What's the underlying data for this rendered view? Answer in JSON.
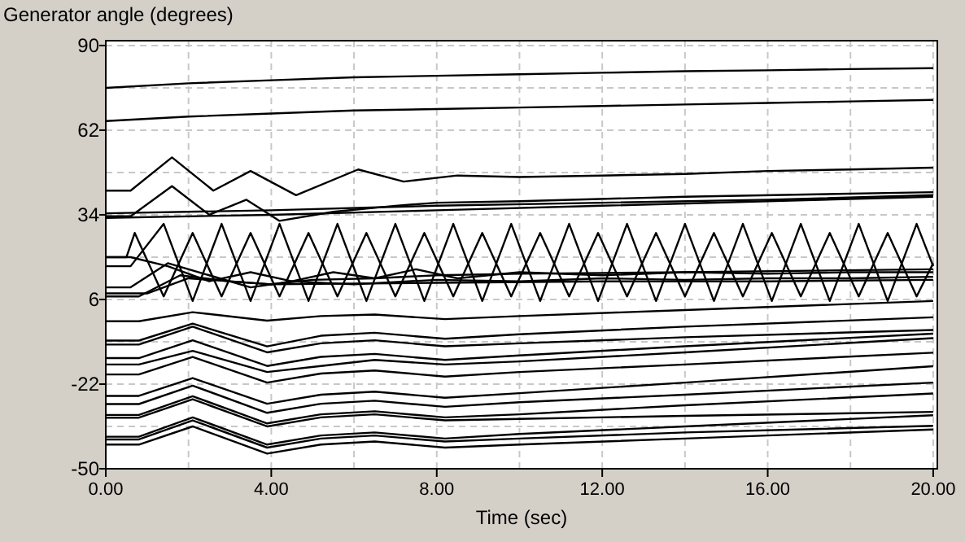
{
  "chart_data": {
    "type": "line",
    "ylabel": "Generator angle (degrees)",
    "xlabel": "Time (sec)",
    "xlim": [
      0,
      20.1
    ],
    "ylim": [
      -50,
      91.6
    ],
    "xticks": [
      {
        "value": 0,
        "label": "0.00"
      },
      {
        "value": 2,
        "label": null
      },
      {
        "value": 4,
        "label": "4.00"
      },
      {
        "value": 6,
        "label": null
      },
      {
        "value": 8,
        "label": "8.00"
      },
      {
        "value": 10,
        "label": null
      },
      {
        "value": 12,
        "label": "12.00"
      },
      {
        "value": 14,
        "label": null
      },
      {
        "value": 16,
        "label": "16.00"
      },
      {
        "value": 18,
        "label": null
      },
      {
        "value": 20,
        "label": "20.00"
      }
    ],
    "yticks": [
      90,
      {
        "value": 76,
        "label": null
      },
      62,
      {
        "value": 48,
        "label": null
      },
      34,
      {
        "value": 20,
        "label": null
      },
      6,
      {
        "value": -8,
        "label": null
      },
      -22,
      {
        "value": -36,
        "label": null
      },
      -50
    ],
    "grid": true,
    "marker": "none",
    "line_style": "solid",
    "series": [
      {
        "color": "#000000",
        "x": [
          0,
          2,
          4,
          6,
          8,
          10,
          12,
          14,
          16,
          18,
          20
        ],
        "values": [
          76,
          77.5,
          78.5,
          79.5,
          80,
          80.5,
          81,
          81.5,
          81.8,
          82.2,
          82.5
        ]
      },
      {
        "color": "#000000",
        "x": [
          0,
          2,
          4,
          6,
          8,
          10,
          12,
          14,
          16,
          18,
          20
        ],
        "values": [
          65,
          66.5,
          67.5,
          68.5,
          69,
          69.5,
          70,
          70.5,
          71,
          71.5,
          72
        ]
      },
      {
        "color": "#000000",
        "x": [
          0,
          0.6,
          1.6,
          2.6,
          3.5,
          4.6,
          6.1,
          7.2,
          8.5,
          10,
          12,
          14,
          16,
          18,
          20
        ],
        "values": [
          42,
          42,
          53,
          42,
          48.5,
          40.5,
          49,
          45,
          47,
          46.5,
          47,
          47.5,
          48.5,
          49,
          49.6
        ]
      },
      {
        "color": "#000000",
        "x": [
          0,
          0.6,
          1.6,
          2.5,
          3.4,
          4.2,
          5.5,
          7,
          8,
          10,
          14,
          20
        ],
        "values": [
          33.5,
          33.5,
          43.5,
          34,
          39,
          32,
          35,
          37,
          38,
          38.5,
          40,
          41.5
        ]
      },
      {
        "color": "#000000",
        "x": [
          0,
          4,
          8,
          12,
          16,
          20
        ],
        "values": [
          34.5,
          35.5,
          37,
          38,
          39,
          40.5
        ]
      },
      {
        "color": "#000000",
        "x": [
          0,
          4,
          8,
          12,
          16,
          20
        ],
        "values": [
          33,
          34,
          35.5,
          37,
          38.5,
          40
        ]
      },
      {
        "color": "#000000",
        "x": [
          0,
          0.6,
          1.4,
          2.1,
          2.8,
          3.5,
          4.2,
          4.9,
          5.6,
          6.3,
          7,
          7.7,
          8.4,
          9.1,
          9.8,
          10.5,
          11.2,
          11.9,
          12.6,
          13.3,
          14,
          14.7,
          15.4,
          16.1,
          16.8,
          17.5,
          18.2,
          18.9,
          19.6,
          20
        ],
        "values": [
          17,
          17,
          31,
          5.5,
          31,
          5.5,
          31,
          5.5,
          31,
          5.5,
          31,
          5.5,
          31,
          5.5,
          31,
          5.5,
          31,
          5.5,
          31,
          5.5,
          31,
          5.5,
          31,
          5.5,
          31,
          5.5,
          31,
          5.5,
          31,
          17
        ]
      },
      {
        "color": "#000000",
        "x": [
          0,
          0.5,
          0.7,
          1.4,
          2.1,
          2.8,
          3.5,
          4.2,
          4.9,
          5.6,
          6.3,
          7,
          7.7,
          8.4,
          9.1,
          9.8,
          10.5,
          11.2,
          11.9,
          12.6,
          13.3,
          14,
          14.7,
          15.4,
          16.1,
          16.8,
          17.5,
          18.2,
          18.9,
          19.6,
          20
        ],
        "values": [
          20,
          20,
          28,
          7,
          28,
          7,
          28,
          7,
          28,
          7,
          28,
          7,
          28,
          7,
          28,
          7,
          28,
          7,
          28,
          7,
          28,
          7,
          28,
          7,
          28,
          7,
          28,
          7,
          28,
          7,
          18
        ]
      },
      {
        "color": "#000000",
        "x": [
          0,
          0.6,
          1.5,
          2.5,
          3.5,
          4.5,
          5.5,
          6.5,
          7.5,
          8.5,
          10,
          12,
          14,
          16,
          18,
          20
        ],
        "values": [
          20,
          20,
          17,
          12,
          15,
          12,
          15,
          13,
          16,
          13,
          15,
          14,
          15,
          14.5,
          15,
          15
        ]
      },
      {
        "color": "#000000",
        "x": [
          0,
          0.6,
          1.5,
          2.5,
          3.5,
          4.5,
          6,
          8,
          10,
          12,
          14,
          16,
          18,
          20
        ],
        "values": [
          10,
          10,
          18,
          14,
          10,
          12,
          11,
          12.5,
          12,
          13,
          12.5,
          13,
          13,
          13.5
        ]
      },
      {
        "color": "#000000",
        "x": [
          0,
          1,
          2,
          4,
          8,
          12,
          16,
          20
        ],
        "values": [
          8,
          8,
          13,
          11,
          11.5,
          12,
          12,
          12.5
        ]
      },
      {
        "color": "#000000",
        "x": [
          0,
          0.8,
          1.8,
          3,
          4,
          5,
          6.5,
          8,
          10,
          14,
          20
        ],
        "values": [
          7,
          7,
          14,
          12,
          11,
          12.5,
          13,
          14,
          14.5,
          15,
          16
        ]
      },
      {
        "color": "#000000",
        "x": [
          0,
          0.8,
          2.1,
          3.9,
          5.2,
          6.5,
          8.2,
          10,
          14,
          20
        ],
        "values": [
          -1.2,
          -1.2,
          1.8,
          -1,
          0.5,
          1,
          -0.5,
          0.5,
          2.5,
          5.5
        ]
      },
      {
        "color": "#000000",
        "x": [
          0,
          0.8,
          2.1,
          3.9,
          5.2,
          6.5,
          8.2,
          10,
          14,
          20
        ],
        "values": [
          -7.6,
          -7.6,
          -2,
          -9.5,
          -6,
          -5,
          -7,
          -5.5,
          -3,
          0.1
        ]
      },
      {
        "color": "#000000",
        "x": [
          0,
          0.8,
          2.1,
          3.9,
          5.2,
          6.5,
          8.2,
          10,
          14,
          20
        ],
        "values": [
          -8.9,
          -8.9,
          -3,
          -11.5,
          -8.5,
          -7.5,
          -9.5,
          -8.5,
          -6.5,
          -4.1
        ]
      },
      {
        "color": "#000000",
        "x": [
          0,
          0.8,
          2.1,
          3.9,
          5.2,
          6.5,
          8.2,
          10,
          14,
          20
        ],
        "values": [
          -13.4,
          -13.4,
          -7.5,
          -16,
          -13,
          -12,
          -14,
          -12.5,
          -9.5,
          -5.3
        ]
      },
      {
        "color": "#000000",
        "x": [
          0,
          0.8,
          2.1,
          3.9,
          5.2,
          6.5,
          8.2,
          10,
          14,
          20
        ],
        "values": [
          -15.5,
          -15.5,
          -11,
          -18,
          -16,
          -14,
          -15.5,
          -14.5,
          -11.5,
          -6.8
        ]
      },
      {
        "color": "#000000",
        "x": [
          0,
          0.8,
          2.1,
          3.9,
          5.2,
          6.5,
          8.2,
          10,
          14,
          20
        ],
        "values": [
          -18.8,
          -18.8,
          -13,
          -21.5,
          -18.5,
          -17.5,
          -19.5,
          -18,
          -15.5,
          -11.6
        ]
      },
      {
        "color": "#000000",
        "x": [
          0,
          0.8,
          2.1,
          3.9,
          5.2,
          6.5,
          8.2,
          10,
          14,
          20
        ],
        "values": [
          -25.9,
          -25.9,
          -20,
          -28.5,
          -25.5,
          -24.5,
          -26.5,
          -25,
          -21.5,
          -16.1
        ]
      },
      {
        "color": "#000000",
        "x": [
          0,
          0.8,
          2.1,
          3.9,
          5.2,
          6.5,
          8.2,
          10,
          14,
          20
        ],
        "values": [
          -28.6,
          -28.6,
          -22.5,
          -31.5,
          -28.5,
          -27.5,
          -29.5,
          -28,
          -25.5,
          -21.5
        ]
      },
      {
        "color": "#000000",
        "x": [
          0,
          0.8,
          2.1,
          3.9,
          5.2,
          6.5,
          8.2,
          10,
          14,
          20
        ],
        "values": [
          -32.2,
          -32.2,
          -26,
          -35,
          -32,
          -31,
          -33,
          -32,
          -29,
          -25.1
        ]
      },
      {
        "color": "#000000",
        "x": [
          0,
          0.8,
          2.1,
          3.9,
          5.2,
          6.5,
          8.2,
          10,
          14,
          20
        ],
        "values": [
          -33.1,
          -33.1,
          -27,
          -36,
          -33,
          -32,
          -34,
          -33.5,
          -32.5,
          -31.2
        ]
      },
      {
        "color": "#000000",
        "x": [
          0,
          0.8,
          2.1,
          3.9,
          5.2,
          6.5,
          8.2,
          10,
          14,
          20
        ],
        "values": [
          -39.4,
          -39.4,
          -33,
          -42,
          -39,
          -38,
          -40,
          -38.5,
          -36,
          -32.3
        ]
      },
      {
        "color": "#000000",
        "x": [
          0,
          0.8,
          2.1,
          3.9,
          5.2,
          6.5,
          8.2,
          10,
          14,
          20
        ],
        "values": [
          -40.3,
          -40.3,
          -34,
          -43,
          -40,
          -39,
          -41,
          -40,
          -38,
          -35.8
        ]
      },
      {
        "color": "#000000",
        "x": [
          0,
          0.8,
          2.1,
          3.9,
          5.2,
          6.5,
          8.2,
          10,
          14,
          20
        ],
        "values": [
          -42,
          -42,
          -36,
          -45,
          -42,
          -41,
          -43,
          -42,
          -40,
          -37
        ]
      }
    ]
  }
}
